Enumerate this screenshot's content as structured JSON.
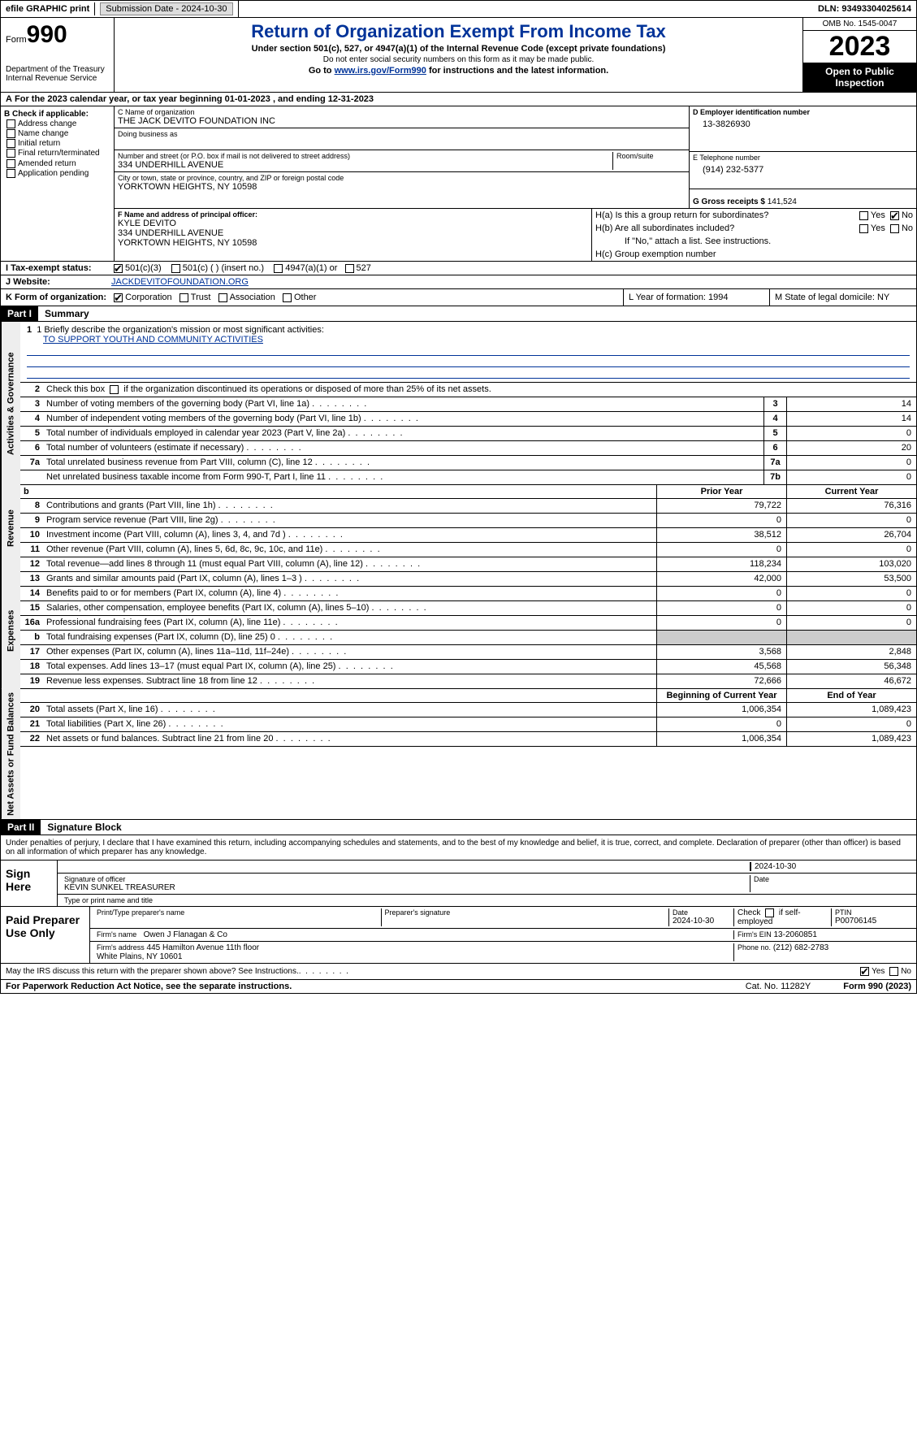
{
  "topbar": {
    "efile": "efile GRAPHIC print",
    "submission": "Submission Date - 2024-10-30",
    "dln": "DLN: 93493304025614"
  },
  "header": {
    "form_label": "Form",
    "form_num": "990",
    "dept": "Department of the Treasury\nInternal Revenue Service",
    "title": "Return of Organization Exempt From Income Tax",
    "subtitle": "Under section 501(c), 527, or 4947(a)(1) of the Internal Revenue Code (except private foundations)",
    "note": "Do not enter social security numbers on this form as it may be made public.",
    "goto": "Go to www.irs.gov/Form990 for instructions and the latest information.",
    "omb": "OMB No. 1545-0047",
    "year": "2023",
    "open": "Open to Public Inspection"
  },
  "period": "For the 2023 calendar year, or tax year beginning 01-01-2023   , and ending 12-31-2023",
  "box_b": {
    "label": "B Check if applicable:",
    "items": [
      "Address change",
      "Name change",
      "Initial return",
      "Final return/terminated",
      "Amended return",
      "Application pending"
    ]
  },
  "box_c": {
    "name_label": "C Name of organization",
    "name": "THE JACK DEVITO FOUNDATION INC",
    "dba_label": "Doing business as",
    "addr_label": "Number and street (or P.O. box if mail is not delivered to street address)",
    "addr": "334 UNDERHILL AVENUE",
    "room_label": "Room/suite",
    "city_label": "City or town, state or province, country, and ZIP or foreign postal code",
    "city": "YORKTOWN HEIGHTS, NY  10598"
  },
  "box_d": {
    "label": "D Employer identification number",
    "value": "13-3826930"
  },
  "box_e": {
    "label": "E Telephone number",
    "value": "(914) 232-5377"
  },
  "box_g": {
    "label": "G Gross receipts $",
    "value": "141,524"
  },
  "box_f": {
    "label": "F  Name and address of principal officer:",
    "name": "KYLE DEVITO",
    "addr1": "334 UNDERHILL AVENUE",
    "addr2": "YORKTOWN HEIGHTS, NY  10598"
  },
  "box_h": {
    "a": "H(a)  Is this a group return for subordinates?",
    "b": "H(b)  Are all subordinates included?",
    "b_note": "If \"No,\" attach a list. See instructions.",
    "c": "H(c)  Group exemption number",
    "yes": "Yes",
    "no": "No"
  },
  "row_i": {
    "label": "I   Tax-exempt status:",
    "opts": [
      "501(c)(3)",
      "501(c) (  ) (insert no.)",
      "4947(a)(1) or",
      "527"
    ]
  },
  "row_j": {
    "label": "J   Website:",
    "value": "JACKDEVITOFOUNDATION.ORG"
  },
  "row_k": {
    "label": "K Form of organization:",
    "opts": [
      "Corporation",
      "Trust",
      "Association",
      "Other"
    ],
    "l": "L Year of formation: 1994",
    "m": "M State of legal domicile: NY"
  },
  "part1": {
    "hdr": "Part I",
    "title": "Summary"
  },
  "mission": {
    "q": "1  Briefly describe the organization's mission or most significant activities:",
    "text": "TO SUPPORT YOUTH AND COMMUNITY ACTIVITIES"
  },
  "line2": "Check this box      if the organization discontinued its operations or disposed of more than 25% of its net assets.",
  "governance_rows": [
    {
      "n": "3",
      "desc": "Number of voting members of the governing body (Part VI, line 1a)",
      "box": "3",
      "val": "14"
    },
    {
      "n": "4",
      "desc": "Number of independent voting members of the governing body (Part VI, line 1b)",
      "box": "4",
      "val": "14"
    },
    {
      "n": "5",
      "desc": "Total number of individuals employed in calendar year 2023 (Part V, line 2a)",
      "box": "5",
      "val": "0"
    },
    {
      "n": "6",
      "desc": "Total number of volunteers (estimate if necessary)",
      "box": "6",
      "val": "20"
    },
    {
      "n": "7a",
      "desc": "Total unrelated business revenue from Part VIII, column (C), line 12",
      "box": "7a",
      "val": "0"
    },
    {
      "n": "",
      "desc": "Net unrelated business taxable income from Form 990-T, Part I, line 11",
      "box": "7b",
      "val": "0"
    }
  ],
  "col_headers": {
    "prior": "Prior Year",
    "current": "Current Year",
    "begin": "Beginning of Current Year",
    "end": "End of Year"
  },
  "revenue_rows": [
    {
      "n": "8",
      "desc": "Contributions and grants (Part VIII, line 1h)",
      "p": "79,722",
      "c": "76,316"
    },
    {
      "n": "9",
      "desc": "Program service revenue (Part VIII, line 2g)",
      "p": "0",
      "c": "0"
    },
    {
      "n": "10",
      "desc": "Investment income (Part VIII, column (A), lines 3, 4, and 7d )",
      "p": "38,512",
      "c": "26,704"
    },
    {
      "n": "11",
      "desc": "Other revenue (Part VIII, column (A), lines 5, 6d, 8c, 9c, 10c, and 11e)",
      "p": "0",
      "c": "0"
    },
    {
      "n": "12",
      "desc": "Total revenue—add lines 8 through 11 (must equal Part VIII, column (A), line 12)",
      "p": "118,234",
      "c": "103,020"
    }
  ],
  "expense_rows": [
    {
      "n": "13",
      "desc": "Grants and similar amounts paid (Part IX, column (A), lines 1–3 )",
      "p": "42,000",
      "c": "53,500"
    },
    {
      "n": "14",
      "desc": "Benefits paid to or for members (Part IX, column (A), line 4)",
      "p": "0",
      "c": "0"
    },
    {
      "n": "15",
      "desc": "Salaries, other compensation, employee benefits (Part IX, column (A), lines 5–10)",
      "p": "0",
      "c": "0"
    },
    {
      "n": "16a",
      "desc": "Professional fundraising fees (Part IX, column (A), line 11e)",
      "p": "0",
      "c": "0"
    },
    {
      "n": "b",
      "desc": "Total fundraising expenses (Part IX, column (D), line 25) 0",
      "p": "",
      "c": "",
      "grey": true
    },
    {
      "n": "17",
      "desc": "Other expenses (Part IX, column (A), lines 11a–11d, 11f–24e)",
      "p": "3,568",
      "c": "2,848"
    },
    {
      "n": "18",
      "desc": "Total expenses. Add lines 13–17 (must equal Part IX, column (A), line 25)",
      "p": "45,568",
      "c": "56,348"
    },
    {
      "n": "19",
      "desc": "Revenue less expenses. Subtract line 18 from line 12",
      "p": "72,666",
      "c": "46,672"
    }
  ],
  "netassets_rows": [
    {
      "n": "20",
      "desc": "Total assets (Part X, line 16)",
      "p": "1,006,354",
      "c": "1,089,423"
    },
    {
      "n": "21",
      "desc": "Total liabilities (Part X, line 26)",
      "p": "0",
      "c": "0"
    },
    {
      "n": "22",
      "desc": "Net assets or fund balances. Subtract line 21 from line 20",
      "p": "1,006,354",
      "c": "1,089,423"
    }
  ],
  "side_labels": {
    "gov": "Activities & Governance",
    "rev": "Revenue",
    "exp": "Expenses",
    "net": "Net Assets or Fund Balances"
  },
  "part2": {
    "hdr": "Part II",
    "title": "Signature Block"
  },
  "sig": {
    "declaration": "Under penalties of perjury, I declare that I have examined this return, including accompanying schedules and statements, and to the best of my knowledge and belief, it is true, correct, and complete. Declaration of preparer (other than officer) is based on all information of which preparer has any knowledge.",
    "sign_here": "Sign Here",
    "date1": "2024-10-30",
    "sig_label": "Signature of officer",
    "officer": "KEVIN SUNKEL TREASURER",
    "name_label": "Type or print name and title",
    "date_label": "Date",
    "paid": "Paid Preparer Use Only",
    "prep_name_label": "Print/Type preparer's name",
    "prep_sig_label": "Preparer's signature",
    "prep_date": "2024-10-30",
    "check_self": "Check       if self-employed",
    "ptin_label": "PTIN",
    "ptin": "P00706145",
    "firm_name_label": "Firm's name",
    "firm_name": "Owen J Flanagan & Co",
    "firm_ein_label": "Firm's EIN",
    "firm_ein": "13-2060851",
    "firm_addr_label": "Firm's address",
    "firm_addr": "445 Hamilton Avenue 11th floor\nWhite Plains, NY  10601",
    "phone_label": "Phone no.",
    "phone": "(212) 682-2783",
    "discuss": "May the IRS discuss this return with the preparer shown above? See Instructions."
  },
  "footer": {
    "left": "For Paperwork Reduction Act Notice, see the separate instructions.",
    "mid": "Cat. No. 11282Y",
    "right": "Form 990 (2023)"
  }
}
